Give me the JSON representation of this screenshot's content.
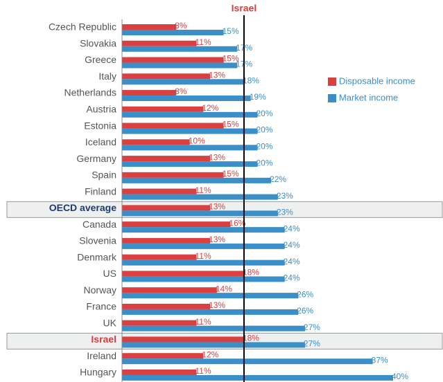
{
  "chart_data": {
    "type": "bar",
    "orientation": "horizontal",
    "categories": [
      "Czech Republic",
      "Slovakia",
      "Greece",
      "Italy",
      "Netherlands",
      "Austria",
      "Estonia",
      "Iceland",
      "Germany",
      "Spain",
      "Finland",
      "OECD average",
      "Canada",
      "Slovenia",
      "Denmark",
      "US",
      "Norway",
      "France",
      "UK",
      "Israel",
      "Ireland",
      "Hungary"
    ],
    "series": [
      {
        "name": "Disposable income",
        "color": "#d9403f",
        "values": [
          8,
          11,
          15,
          13,
          8,
          12,
          15,
          10,
          13,
          15,
          11,
          13,
          16,
          13,
          11,
          18,
          14,
          13,
          11,
          18,
          12,
          11
        ],
        "value_labels": [
          "8%",
          "11%",
          "15%",
          "13%",
          "8%",
          "12%",
          "15%",
          "10%",
          "13%",
          "15%",
          "11%",
          "13%",
          "16%",
          "13%",
          "11%",
          "18%",
          "14%",
          "13%",
          "11%",
          "18%",
          "12%",
          "11%"
        ]
      },
      {
        "name": "Market income",
        "color": "#3a8fc9",
        "values": [
          15,
          17,
          17,
          18,
          19,
          20,
          20,
          20,
          20,
          22,
          23,
          23,
          24,
          24,
          24,
          24,
          26,
          26,
          27,
          27,
          37,
          40
        ],
        "value_labels": [
          "15%",
          "17%",
          "17%",
          "18%",
          "19%",
          "20%",
          "20%",
          "20%",
          "20%",
          "22%",
          "23%",
          "23%",
          "24%",
          "24%",
          "24%",
          "24%",
          "26%",
          "26%",
          "27%",
          "27%",
          "37%",
          "40%"
        ]
      }
    ],
    "xlim": [
      0,
      40
    ],
    "reference_line": {
      "label": "Israel",
      "value": 18,
      "color": "#d9403f"
    },
    "highlight": [
      {
        "index": 11,
        "color": "#1f3a6e"
      },
      {
        "index": 19,
        "color": "#d9403f"
      }
    ],
    "legend": "upper right"
  }
}
